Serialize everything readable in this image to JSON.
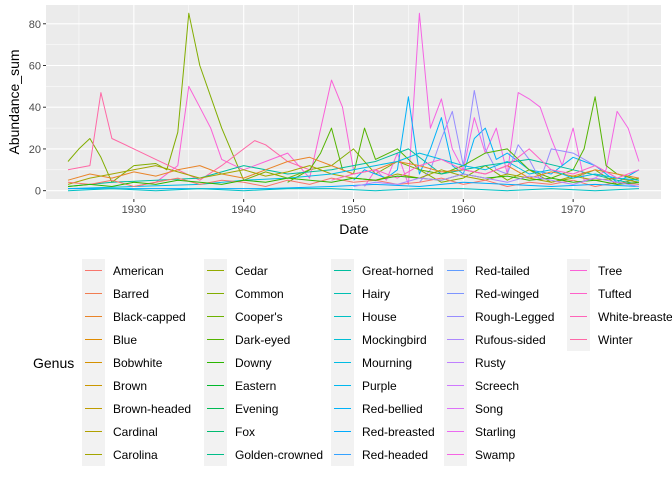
{
  "chart_data": {
    "type": "line",
    "title": "",
    "xlabel": "Date",
    "ylabel": "Abundance_sum",
    "xlim": [
      1922,
      1978
    ],
    "ylim": [
      -4,
      89
    ],
    "x_ticks": [
      1930,
      1940,
      1950,
      1960,
      1970
    ],
    "y_ticks": [
      0,
      20,
      40,
      60,
      80
    ],
    "grid": true,
    "legend": {
      "title": "Genus",
      "placement": "bottom",
      "columns": 5,
      "rows": 9,
      "entries": [
        {
          "name": "American",
          "color": "#F8766D"
        },
        {
          "name": "Barred",
          "color": "#F17D51"
        },
        {
          "name": "Black-capped",
          "color": "#E98429"
        },
        {
          "name": "Blue",
          "color": "#E08B00"
        },
        {
          "name": "Bobwhite",
          "color": "#D59100"
        },
        {
          "name": "Brown",
          "color": "#CA9700"
        },
        {
          "name": "Brown-headed",
          "color": "#BE9C00"
        },
        {
          "name": "Cardinal",
          "color": "#B1A100"
        },
        {
          "name": "Carolina",
          "color": "#A3A500"
        },
        {
          "name": "Cedar",
          "color": "#93AA00"
        },
        {
          "name": "Common",
          "color": "#82AD00"
        },
        {
          "name": "Cooper's",
          "color": "#6EB200"
        },
        {
          "name": "Dark-eyed",
          "color": "#54B400"
        },
        {
          "name": "Downy",
          "color": "#2BB600"
        },
        {
          "name": "Eastern",
          "color": "#00B82B"
        },
        {
          "name": "Evening",
          "color": "#00BA54"
        },
        {
          "name": "Fox",
          "color": "#00BB70"
        },
        {
          "name": "Golden-crowned",
          "color": "#00BD89"
        },
        {
          "name": "Great-horned",
          "color": "#00BE9E"
        },
        {
          "name": "Hairy",
          "color": "#00BFB2"
        },
        {
          "name": "House",
          "color": "#00C0C4"
        },
        {
          "name": "Mockingbird",
          "color": "#00BED4"
        },
        {
          "name": "Mourning",
          "color": "#00BCE3"
        },
        {
          "name": "Purple",
          "color": "#00B8EF"
        },
        {
          "name": "Red-bellied",
          "color": "#00B2F9"
        },
        {
          "name": "Red-breasted",
          "color": "#00ABFD"
        },
        {
          "name": "Red-headed",
          "color": "#35A2FF"
        },
        {
          "name": "Red-tailed",
          "color": "#619CFF"
        },
        {
          "name": "Red-winged",
          "color": "#7E95FF"
        },
        {
          "name": "Rough-Legged",
          "color": "#978DFF"
        },
        {
          "name": "Rufous-sided",
          "color": "#AC88FF"
        },
        {
          "name": "Rusty",
          "color": "#BF80FF"
        },
        {
          "name": "Screech",
          "color": "#CF78FF"
        },
        {
          "name": "Song",
          "color": "#DE71F9"
        },
        {
          "name": "Starling",
          "color": "#EB6AF1"
        },
        {
          "name": "Swamp",
          "color": "#F564E3"
        },
        {
          "name": "Tree",
          "color": "#FB61D7"
        },
        {
          "name": "Tufted",
          "color": "#FF61C9"
        },
        {
          "name": "White-breasted",
          "color": "#FF64B8"
        },
        {
          "name": "Winter",
          "color": "#FF68A6"
        }
      ]
    },
    "series": [
      {
        "color": "#82AD00",
        "x": [
          1924,
          1925,
          1926,
          1927,
          1928,
          1930,
          1932,
          1933,
          1934,
          1935,
          1936,
          1938,
          1940,
          1942,
          1944,
          1946,
          1948,
          1950,
          1952,
          1954,
          1956,
          1958,
          1960,
          1962,
          1964,
          1966,
          1968,
          1970,
          1972,
          1974,
          1976
        ],
        "y": [
          14,
          20,
          25,
          16,
          4,
          12,
          13,
          10,
          28,
          85,
          60,
          30,
          5,
          9,
          6,
          10,
          12,
          20,
          8,
          14,
          10,
          4,
          6,
          12,
          5,
          10,
          4,
          6,
          10,
          3,
          6
        ]
      },
      {
        "color": "#F564E3",
        "x": [
          1951,
          1952,
          1953,
          1954,
          1955,
          1956,
          1957,
          1958,
          1959,
          1960,
          1961,
          1962,
          1963,
          1964,
          1965,
          1966,
          1967,
          1968,
          1969,
          1970,
          1971,
          1972,
          1973,
          1974,
          1975,
          1976
        ],
        "y": [
          2,
          10,
          5,
          18,
          3,
          85,
          30,
          44,
          20,
          10,
          35,
          18,
          30,
          8,
          47,
          44,
          40,
          25,
          12,
          30,
          5,
          6,
          10,
          38,
          30,
          14
        ]
      },
      {
        "color": "#FB61D7",
        "x": [
          1930,
          1932,
          1934,
          1935,
          1936,
          1937,
          1938,
          1940,
          1942,
          1944,
          1946,
          1948,
          1949,
          1950
        ],
        "y": [
          2,
          4,
          12,
          50,
          40,
          30,
          15,
          10,
          14,
          18,
          6,
          53,
          40,
          10
        ]
      },
      {
        "color": "#FF68A6",
        "x": [
          1924,
          1926,
          1927,
          1928,
          1930,
          1932,
          1934,
          1936,
          1938,
          1940,
          1941,
          1942,
          1944,
          1946
        ],
        "y": [
          10,
          12,
          47,
          25,
          20,
          15,
          10,
          5,
          12,
          20,
          24,
          22,
          14,
          10
        ]
      },
      {
        "color": "#00B2F9",
        "x": [
          1950,
          1951,
          1952,
          1953,
          1954,
          1955,
          1956,
          1957,
          1958,
          1959,
          1960,
          1961,
          1962,
          1963,
          1964,
          1966,
          1968,
          1970,
          1972,
          1974,
          1976
        ],
        "y": [
          5,
          10,
          8,
          6,
          10,
          45,
          8,
          20,
          35,
          12,
          8,
          25,
          30,
          15,
          18,
          10,
          8,
          16,
          12,
          4,
          10
        ]
      },
      {
        "color": "#978DFF",
        "x": [
          1956,
          1957,
          1958,
          1959,
          1960,
          1961,
          1962,
          1963,
          1964,
          1965,
          1966,
          1967,
          1968,
          1970,
          1972,
          1974,
          1976
        ],
        "y": [
          4,
          10,
          25,
          38,
          12,
          48,
          20,
          10,
          8,
          22,
          15,
          5,
          20,
          18,
          12,
          6,
          4
        ]
      },
      {
        "color": "#54B400",
        "x": [
          1944,
          1946,
          1947,
          1948,
          1949,
          1950,
          1951,
          1952,
          1954,
          1956,
          1958,
          1960,
          1962,
          1964,
          1966,
          1968,
          1970,
          1971,
          1972,
          1973,
          1974,
          1976
        ],
        "y": [
          4,
          10,
          18,
          30,
          10,
          8,
          30,
          15,
          20,
          10,
          8,
          12,
          18,
          20,
          10,
          6,
          10,
          20,
          45,
          12,
          8,
          5
        ]
      },
      {
        "color": "#00BE9E",
        "x": [
          1924,
          1928,
          1932,
          1936,
          1940,
          1944,
          1948,
          1952,
          1955,
          1958,
          1962,
          1966,
          1970,
          1974,
          1976
        ],
        "y": [
          2,
          4,
          5,
          6,
          12,
          8,
          10,
          14,
          20,
          8,
          12,
          15,
          10,
          5,
          3
        ]
      },
      {
        "color": "#E98429",
        "x": [
          1924,
          1926,
          1928,
          1930,
          1932,
          1934,
          1936,
          1938,
          1940,
          1942,
          1944,
          1946,
          1948,
          1950,
          1952,
          1954,
          1956,
          1958,
          1960,
          1962,
          1964,
          1966,
          1968,
          1970,
          1972,
          1974,
          1976
        ],
        "y": [
          5,
          8,
          6,
          9,
          7,
          10,
          12,
          8,
          6,
          10,
          14,
          16,
          12,
          8,
          10,
          14,
          12,
          9,
          10,
          8,
          12,
          6,
          9,
          7,
          10,
          8,
          6
        ]
      },
      {
        "color": "#A3A500",
        "x": [
          1924,
          1926,
          1928,
          1930,
          1932,
          1934,
          1936,
          1938,
          1940,
          1942,
          1944,
          1946,
          1948,
          1950,
          1952,
          1954,
          1956,
          1958,
          1960,
          1962,
          1964,
          1966,
          1968,
          1970,
          1972,
          1974,
          1976
        ],
        "y": [
          3,
          6,
          8,
          10,
          12,
          9,
          6,
          8,
          10,
          7,
          9,
          12,
          8,
          6,
          5,
          8,
          6,
          10,
          7,
          5,
          8,
          6,
          4,
          7,
          5,
          6,
          4
        ]
      },
      {
        "color": "#00BCE3",
        "x": [
          1924,
          1930,
          1936,
          1940,
          1944,
          1948,
          1950,
          1952,
          1954,
          1956,
          1958,
          1960,
          1962,
          1964,
          1966,
          1968,
          1970,
          1972,
          1974,
          1976
        ],
        "y": [
          1,
          2,
          3,
          5,
          6,
          8,
          10,
          12,
          14,
          18,
          15,
          12,
          10,
          14,
          8,
          10,
          6,
          8,
          6,
          5
        ]
      },
      {
        "color": "#FF61C9",
        "x": [
          1948,
          1950,
          1952,
          1954,
          1956,
          1958,
          1960,
          1962,
          1964,
          1966,
          1968,
          1970,
          1972,
          1974,
          1976
        ],
        "y": [
          5,
          8,
          10,
          6,
          12,
          15,
          10,
          8,
          12,
          20,
          10,
          8,
          12,
          6,
          10
        ]
      },
      {
        "color": "#F8766D",
        "x": [
          1924,
          1926,
          1928,
          1930,
          1932,
          1934,
          1936,
          1938,
          1940,
          1942,
          1944,
          1946,
          1948,
          1950,
          1952,
          1954,
          1956,
          1958,
          1960,
          1962,
          1964,
          1966,
          1968,
          1970,
          1972,
          1974,
          1976
        ],
        "y": [
          4,
          3,
          5,
          2,
          4,
          6,
          3,
          5,
          4,
          2,
          5,
          3,
          6,
          4,
          5,
          3,
          4,
          6,
          3,
          5,
          2,
          4,
          3,
          5,
          2,
          4,
          3
        ]
      },
      {
        "color": "#2BB600",
        "x": [
          1924,
          1926,
          1928,
          1930,
          1932,
          1934,
          1936,
          1938,
          1940,
          1942,
          1944,
          1946,
          1948,
          1950,
          1952,
          1954,
          1956,
          1958,
          1960,
          1962,
          1964,
          1966,
          1968,
          1970,
          1972,
          1974,
          1976
        ],
        "y": [
          2,
          3,
          2,
          4,
          3,
          5,
          4,
          3,
          5,
          4,
          6,
          5,
          4,
          6,
          5,
          7,
          6,
          5,
          8,
          6,
          7,
          5,
          6,
          4,
          5,
          3,
          4
        ]
      },
      {
        "color": "#00ABFD",
        "x": [
          1924,
          1930,
          1936,
          1942,
          1948,
          1952,
          1956,
          1960,
          1964,
          1968,
          1972,
          1976
        ],
        "y": [
          1,
          1,
          1,
          1,
          2,
          3,
          2,
          4,
          3,
          2,
          3,
          2
        ]
      },
      {
        "color": "#AC88FF",
        "x": [
          1950,
          1952,
          1954,
          1956,
          1958,
          1960,
          1962,
          1964,
          1966,
          1968,
          1970,
          1972,
          1974,
          1976
        ],
        "y": [
          2,
          4,
          3,
          6,
          5,
          8,
          6,
          4,
          7,
          5,
          3,
          6,
          4,
          2
        ]
      },
      {
        "color": "#00C0C4",
        "x": [
          1924,
          1928,
          1932,
          1936,
          1940,
          1944,
          1948,
          1952,
          1956,
          1960,
          1964,
          1968,
          1972,
          1976
        ],
        "y": [
          0,
          1,
          0,
          1,
          0,
          1,
          1,
          0,
          1,
          1,
          0,
          1,
          0,
          1
        ]
      }
    ]
  }
}
